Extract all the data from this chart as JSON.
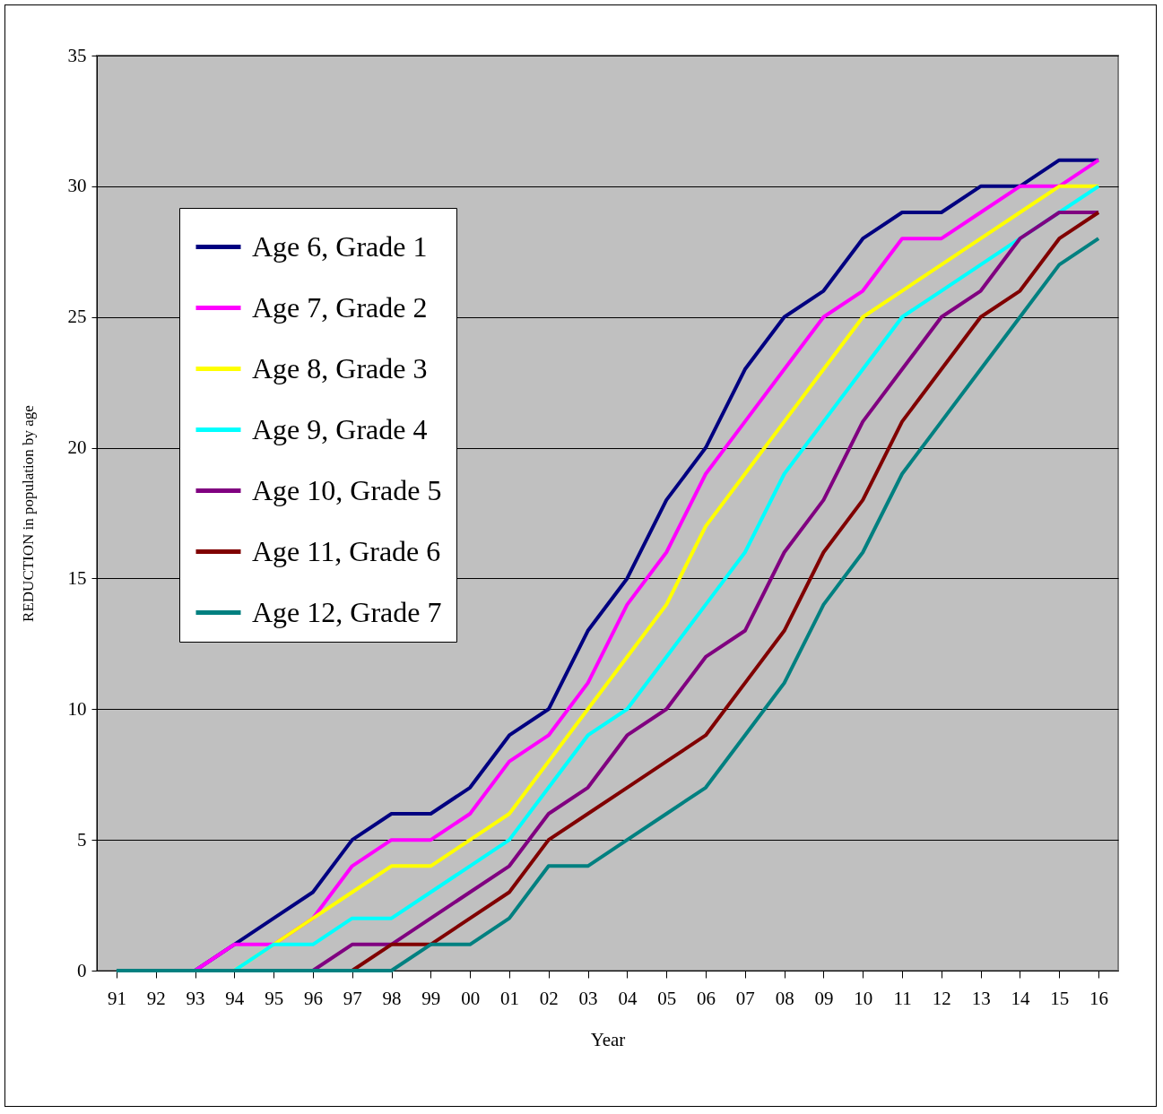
{
  "chart_data": {
    "type": "line",
    "xlabel": "Year",
    "ylabel": "REDUCTION in population by age",
    "categories": [
      "91",
      "92",
      "93",
      "94",
      "95",
      "96",
      "97",
      "98",
      "99",
      "00",
      "01",
      "02",
      "03",
      "04",
      "05",
      "06",
      "07",
      "08",
      "09",
      "10",
      "11",
      "12",
      "13",
      "14",
      "15",
      "16"
    ],
    "ylim": [
      0,
      35
    ],
    "yticks": [
      0,
      5,
      10,
      15,
      20,
      25,
      30,
      35
    ],
    "grid": "y",
    "legend": "top left",
    "marker": "none",
    "line_style": "solid",
    "series": [
      {
        "name": "Age 6, Grade 1",
        "color": "#000080",
        "values": [
          null,
          null,
          0,
          1,
          2,
          3,
          5,
          6,
          6,
          7,
          9,
          10,
          13,
          15,
          18,
          20,
          23,
          25,
          26,
          28,
          29,
          29,
          30,
          30,
          31,
          31
        ]
      },
      {
        "name": "Age 7, Grade 2",
        "color": "#ff00ff",
        "values": [
          null,
          null,
          0,
          1,
          1,
          2,
          4,
          5,
          5,
          6,
          8,
          9,
          11,
          14,
          16,
          19,
          21,
          23,
          25,
          26,
          28,
          28,
          29,
          30,
          30,
          31
        ]
      },
      {
        "name": "Age 8, Grade 3",
        "color": "#ffff00",
        "values": [
          null,
          null,
          null,
          0,
          1,
          2,
          3,
          4,
          4,
          5,
          6,
          8,
          10,
          12,
          14,
          17,
          19,
          21,
          23,
          25,
          26,
          27,
          28,
          29,
          30,
          30
        ]
      },
      {
        "name": "Age 9, Grade 4",
        "color": "#00ffff",
        "values": [
          null,
          null,
          null,
          0,
          1,
          1,
          2,
          2,
          3,
          4,
          5,
          7,
          9,
          10,
          12,
          14,
          16,
          19,
          21,
          23,
          25,
          26,
          27,
          28,
          29,
          30
        ]
      },
      {
        "name": "Age 10, Grade 5",
        "color": "#800080",
        "values": [
          null,
          null,
          null,
          null,
          null,
          0,
          1,
          1,
          2,
          3,
          4,
          6,
          7,
          9,
          10,
          12,
          13,
          16,
          18,
          21,
          23,
          25,
          26,
          28,
          29,
          29
        ]
      },
      {
        "name": "Age 11, Grade 6",
        "color": "#800000",
        "values": [
          null,
          null,
          null,
          null,
          null,
          null,
          0,
          1,
          1,
          2,
          3,
          5,
          6,
          7,
          8,
          9,
          11,
          13,
          16,
          18,
          21,
          23,
          25,
          26,
          28,
          29
        ]
      },
      {
        "name": "Age 12, Grade 7",
        "color": "#008080",
        "values": [
          0,
          0,
          0,
          0,
          0,
          0,
          0,
          0,
          1,
          1,
          2,
          4,
          4,
          5,
          6,
          7,
          9,
          11,
          14,
          16,
          19,
          21,
          23,
          25,
          27,
          28
        ]
      }
    ]
  }
}
